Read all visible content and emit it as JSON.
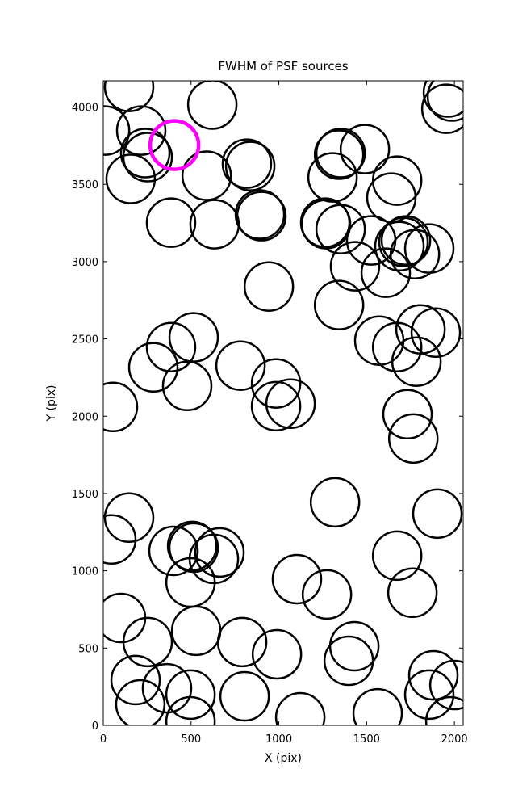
{
  "chart_data": {
    "type": "scatter",
    "title": "FWHM of PSF sources",
    "x_label": "X (pix)",
    "y_label": "Y (pix)",
    "xlim": [
      0,
      2050
    ],
    "ylim": [
      0,
      4170
    ],
    "xticks": [
      0,
      500,
      1000,
      1500,
      2000
    ],
    "yticks": [
      0,
      500,
      1000,
      1500,
      2000,
      2500,
      3000,
      3500,
      4000
    ],
    "series": [
      {
        "color": "#000000",
        "x": [
          147,
          10,
          216,
          239,
          253,
          156,
          621,
          589,
          818,
          837,
          386,
          634,
          892,
          901,
          943,
          1352,
          1343,
          1490,
          1306,
          1674,
          1641,
          1264,
          1269,
          1352,
          1526,
          1434,
          1609,
          1710,
          1724,
          1687,
          1775,
          1857,
          1343,
          1572,
          1807,
          1894,
          1674,
          1784,
          1733,
          1766,
          55,
          386,
          515,
          285,
          478,
          782,
          984,
          984,
          1067,
          1320,
          1903,
          147,
          46,
          400,
          506,
          515,
          662,
          630,
          497,
          1103,
          1274,
          1674,
          1761,
          101,
          529,
          253,
          791,
          989,
          1430,
          1398,
          184,
          363,
          497,
          211,
          497,
          805,
          1122,
          1563,
          1880,
          1857,
          2000,
          1977,
          1954,
          1986,
          1963
        ],
        "values": [
          4130,
          3848,
          3848,
          3702,
          3676,
          3535,
          4016,
          3556,
          3634,
          3618,
          3252,
          3242,
          3305,
          3294,
          2839,
          3702,
          3692,
          3728,
          3545,
          3524,
          3414,
          3252,
          3242,
          3210,
          3137,
          2970,
          2928,
          3127,
          3137,
          3100,
          3048,
          3085,
          2719,
          2489,
          2562,
          2541,
          2447,
          2353,
          2013,
          1856,
          2060,
          2447,
          2510,
          2316,
          2196,
          2327,
          2212,
          2065,
          2081,
          1443,
          1370,
          1344,
          1203,
          1129,
          1161,
          1150,
          1119,
          1077,
          925,
          946,
          847,
          1098,
          858,
          695,
          612,
          539,
          539,
          460,
          512,
          418,
          293,
          240,
          199,
          136,
          26,
          188,
          52,
          78,
          324,
          199,
          261,
          26,
          3989,
          4068,
          4094
        ]
      },
      {
        "color": "#ff00ff",
        "x": [
          405
        ],
        "values": [
          3754
        ]
      }
    ]
  }
}
